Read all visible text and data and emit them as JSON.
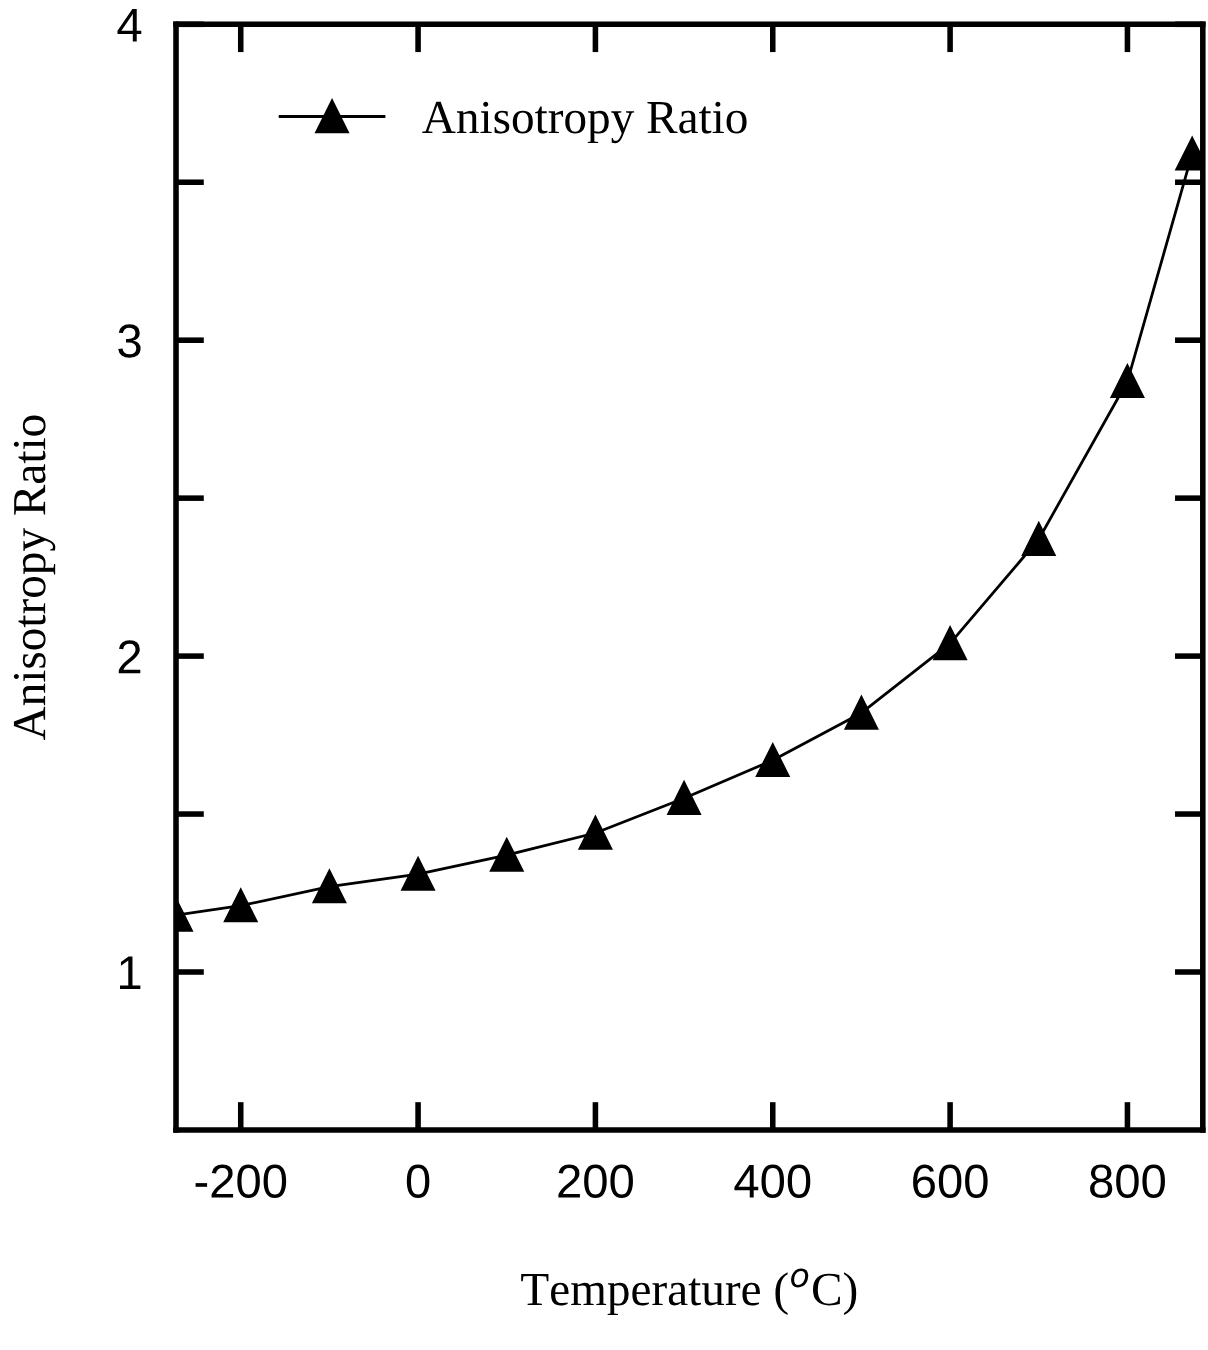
{
  "chart_data": {
    "type": "line",
    "xlabel": "Temperature ($^{o}$C)",
    "ylabel": "Anisotropy Ratio",
    "x": [
      -273,
      -200,
      -100,
      0,
      100,
      200,
      300,
      400,
      500,
      600,
      700,
      800,
      873
    ],
    "series": [
      {
        "name": "Anisotropy Ratio",
        "color": "#000000",
        "values": [
          1.18,
          1.21,
          1.27,
          1.31,
          1.37,
          1.44,
          1.55,
          1.67,
          1.82,
          2.04,
          2.37,
          2.87,
          3.59
        ]
      }
    ],
    "xlim": [
      -273,
      885
    ],
    "ylim": [
      0.5,
      4
    ],
    "xticks": [
      -200,
      0,
      200,
      400,
      600,
      800
    ],
    "yticks": [
      {
        "value": 1,
        "label": "1"
      },
      {
        "value": 1.5,
        "label": null
      },
      {
        "value": 2,
        "label": "2"
      },
      {
        "value": 2.5,
        "label": null
      },
      {
        "value": 3,
        "label": "3"
      },
      {
        "value": 3.5,
        "label": null
      },
      {
        "value": 4,
        "label": "4"
      }
    ],
    "marker": "triangle",
    "line_style": "solid",
    "legend": "top left",
    "grid": false
  }
}
